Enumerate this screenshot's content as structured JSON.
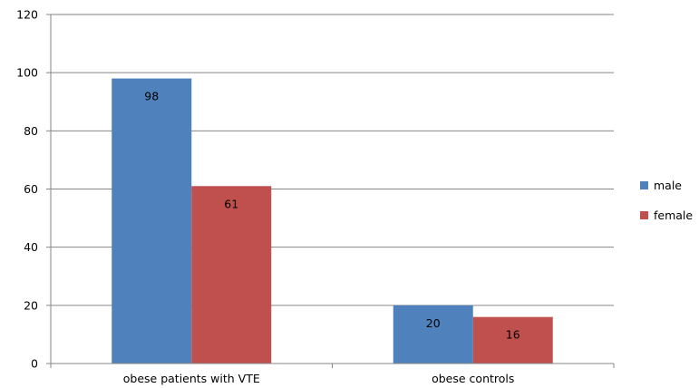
{
  "chart_data": {
    "type": "bar",
    "categories": [
      "obese patients with VTE",
      "obese controls"
    ],
    "series": [
      {
        "name": "male",
        "values": [
          98,
          20
        ],
        "color": "#4F81BD"
      },
      {
        "name": "female",
        "values": [
          61,
          16
        ],
        "color": "#C0504D"
      }
    ],
    "ylim": [
      0,
      120
    ],
    "yticks": [
      0,
      20,
      40,
      60,
      80,
      100,
      120
    ],
    "grid": true,
    "legend": "right",
    "data_labels": true
  }
}
